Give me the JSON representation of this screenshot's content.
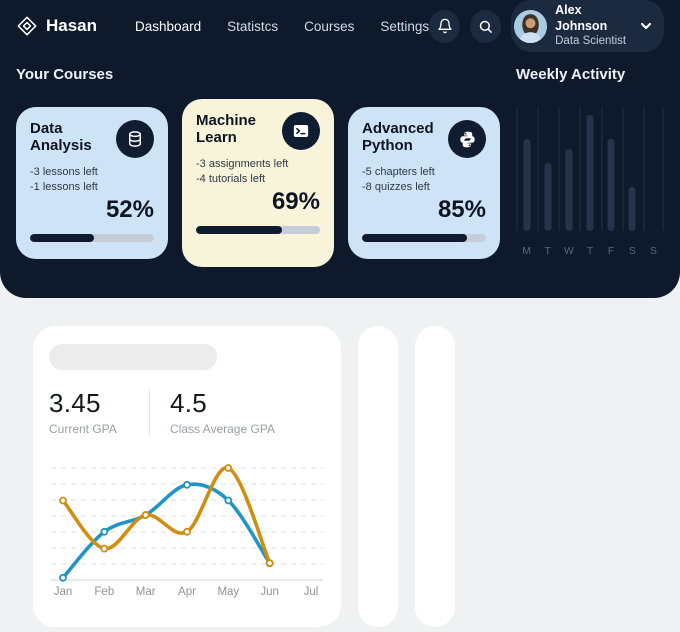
{
  "brand": {
    "name": "Hasan"
  },
  "nav": {
    "items": [
      "Dashboard",
      "Statistcs",
      "Courses",
      "Settings"
    ],
    "active": "Dashboard"
  },
  "user": {
    "name": "Alex Johnson",
    "role": "Data Scientist"
  },
  "sections": {
    "your_courses": "Your Courses",
    "weekly_activity": "Weekly Activity"
  },
  "courses": {
    "cards": [
      {
        "title": "Data Analysis",
        "icon": "database-icon",
        "lines": [
          "-3 lessons left",
          "-1 lessons left"
        ],
        "percent": 52,
        "percent_label": "52%",
        "bg": "#cfe3f6"
      },
      {
        "title": "Machine Learn",
        "icon": "terminal-icon",
        "lines": [
          "-3 assignments left",
          "-4 tutorials left"
        ],
        "percent": 69,
        "percent_label": "69%",
        "bg": "#f8f4d9"
      },
      {
        "title": "Advanced Python",
        "icon": "python-icon",
        "lines": [
          "-5 chapters left",
          "-8 quizzes left"
        ],
        "percent": 85,
        "percent_label": "85%",
        "bg": "#cfe3f6"
      }
    ]
  },
  "stats": {
    "current_gpa": {
      "value": "3.45",
      "label": "Current GPA"
    },
    "class_average_gpa": {
      "value": "4.5",
      "label": "Class Average GPA"
    }
  },
  "colors": {
    "hero_bg": "#0e1a2b",
    "card_blue": "#cfe3f6",
    "card_cream": "#f8f4d9",
    "progress_fill": "#101c2e",
    "page_bg": "#f0f1f3",
    "line_blue": "#2095c4",
    "line_orange": "#d18d0f",
    "weekly_bar": "#27334b",
    "weekly_track": "#1a2539"
  },
  "chart_data": [
    {
      "id": "weekly-activity",
      "type": "bar",
      "title": "Weekly Activity",
      "categories": [
        "M",
        "T",
        "W",
        "T",
        "F",
        "S",
        "S"
      ],
      "values": [
        77,
        57,
        68,
        97,
        77,
        37,
        0
      ],
      "ylim": [
        0,
        100
      ],
      "ylabel": "",
      "xlabel": "",
      "note": "y-axis unlabeled; values are percent of tallest bar"
    },
    {
      "id": "gpa-trend",
      "type": "line",
      "title": "",
      "categories": [
        "Jan",
        "Feb",
        "Mar",
        "Apr",
        "May",
        "Jun",
        "Jul"
      ],
      "series": [
        {
          "name": "blue",
          "color": "#2095c4",
          "values": [
            2,
            43,
            58,
            85,
            71,
            15
          ]
        },
        {
          "name": "orange",
          "color": "#d18d0f",
          "values": [
            71,
            28,
            58,
            43,
            100,
            15
          ]
        }
      ],
      "ylim": [
        0,
        100
      ],
      "grid": "dashed-horizontal",
      "note": "y-axis unlabeled; values normalized 0-100; no data point at Jul"
    }
  ]
}
